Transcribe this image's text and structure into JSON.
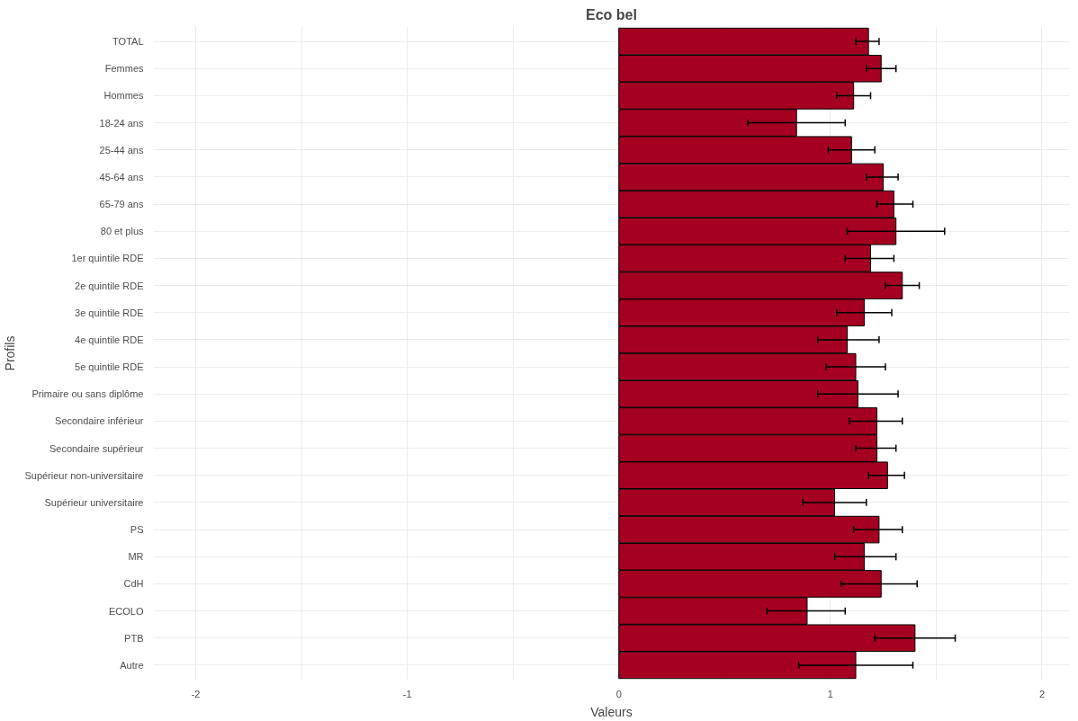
{
  "chart_data": {
    "type": "bar",
    "orientation": "horizontal",
    "title": "Eco bel",
    "xlabel": "Valeurs",
    "ylabel": "Profils",
    "categories": [
      "TOTAL",
      "Femmes",
      "Hommes",
      "18-24 ans",
      "25-44 ans",
      "45-64 ans",
      "65-79 ans",
      "80 et plus",
      "1er quintile RDE",
      "2e quintile RDE",
      "3e quintile RDE",
      "4e quintile RDE",
      "5e quintile RDE",
      "Primaire ou sans diplôme",
      "Secondaire inférieur",
      "Secondaire supérieur",
      "Supérieur non-universitaire",
      "Supérieur universitaire",
      "PS",
      "MR",
      "CdH",
      "ECOLO",
      "PTB",
      "Autre"
    ],
    "values": [
      1.18,
      1.24,
      1.11,
      0.84,
      1.1,
      1.25,
      1.3,
      1.31,
      1.19,
      1.34,
      1.16,
      1.08,
      1.12,
      1.13,
      1.22,
      1.22,
      1.27,
      1.02,
      1.23,
      1.16,
      1.24,
      0.89,
      1.4,
      1.12
    ],
    "errors": [
      [
        1.12,
        1.23
      ],
      [
        1.17,
        1.31
      ],
      [
        1.03,
        1.19
      ],
      [
        0.61,
        1.07
      ],
      [
        0.99,
        1.21
      ],
      [
        1.17,
        1.32
      ],
      [
        1.22,
        1.39
      ],
      [
        1.08,
        1.54
      ],
      [
        1.07,
        1.3
      ],
      [
        1.26,
        1.42
      ],
      [
        1.03,
        1.29
      ],
      [
        0.94,
        1.23
      ],
      [
        0.98,
        1.26
      ],
      [
        0.94,
        1.32
      ],
      [
        1.09,
        1.34
      ],
      [
        1.12,
        1.31
      ],
      [
        1.18,
        1.35
      ],
      [
        0.87,
        1.17
      ],
      [
        1.11,
        1.34
      ],
      [
        1.02,
        1.31
      ],
      [
        1.05,
        1.41
      ],
      [
        0.7,
        1.07
      ],
      [
        1.21,
        1.59
      ],
      [
        0.85,
        1.39
      ]
    ],
    "color": "#a50021",
    "xlim": [
      -2.2,
      2.13
    ],
    "xticks": [
      -2,
      {
        "value": -1.5,
        "label": null
      },
      -1,
      {
        "value": -0.5,
        "label": null
      },
      0,
      {
        "value": 0.5,
        "label": null
      },
      1,
      {
        "value": 1.5,
        "label": null
      },
      2
    ],
    "grid": true
  }
}
